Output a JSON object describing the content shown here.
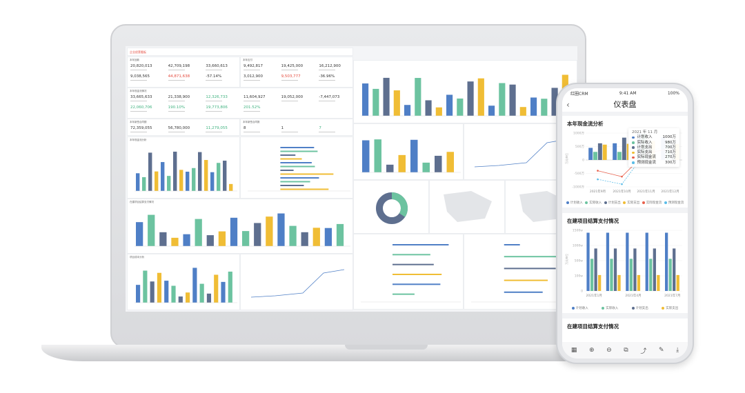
{
  "laptop": {
    "app_title": "企业经营看板",
    "sections": [
      {
        "title": "本年回款",
        "kpis": [
          {
            "v": "20,820,013"
          },
          {
            "v": "42,709,198"
          },
          {
            "v": "33,660,613"
          },
          {
            "v": "9,038,565"
          },
          {
            "v": "44,871,638",
            "c": "red"
          },
          {
            "v": "-57.14%"
          }
        ]
      },
      {
        "title": "本年应付",
        "kpis": [
          {
            "v": "9,492,817"
          },
          {
            "v": "19,425,000"
          },
          {
            "v": "16,212,900"
          },
          {
            "v": "3,012,900"
          },
          {
            "v": "9,503,777",
            "c": "red"
          },
          {
            "v": "-36.96%"
          }
        ]
      },
      {
        "title": "本年现金流情况",
        "kpis": [
          {
            "v": "33,665,633"
          },
          {
            "v": "21,338,900"
          },
          {
            "v": "12,326,733",
            "c": "green"
          },
          {
            "v": "11,604,927"
          },
          {
            "v": "19,052,000"
          },
          {
            "v": "-7,447,073"
          },
          {
            "v": "22,060,706",
            "c": "green"
          },
          {
            "v": "190.10%",
            "c": "green"
          },
          {
            "v": "19,773,806",
            "c": "green"
          },
          {
            "v": "201.52%",
            "c": "green"
          }
        ]
      },
      {
        "title": "本年新签合同额",
        "kpis": [
          {
            "v": "72,359,055"
          },
          {
            "v": "56,780,000"
          },
          {
            "v": "11,279,055",
            "c": "green"
          }
        ]
      },
      {
        "title": "本年新签合同数",
        "kpis": [
          {
            "v": "8"
          },
          {
            "v": "1"
          },
          {
            "v": "7",
            "c": "green"
          }
        ]
      }
    ]
  },
  "phone": {
    "status": {
      "carrier": "红圈CRM",
      "time": "9:41 AM",
      "battery": "100%"
    },
    "nav_title": "仪表盘",
    "back_icon": "chevron-left-icon",
    "toolbar_icons": [
      "grid-icon",
      "zoom-in-icon",
      "zoom-out-icon",
      "fit-icon",
      "rotate-icon",
      "pen-icon",
      "download-icon"
    ],
    "third_title": "在建项目结算支付情况"
  },
  "colors": {
    "plan_income": "#4f7fc6",
    "actual_income": "#6cc3a0",
    "plan_expense": "#5e6f8f",
    "actual_expense": "#f0bd35",
    "actual_cash": "#e8604c",
    "forecast_cash": "#5bbde8"
  },
  "chart_data": [
    {
      "type": "bar",
      "title": "本年现金流分析",
      "ylabel": "万元单位",
      "ylim": [
        -1000,
        1000
      ],
      "yticks": [
        "1000万",
        "500万",
        "0",
        "-500万",
        "-1000万"
      ],
      "categories": [
        "2021年9月",
        "2021年10月",
        "2021年11月",
        "2021年12月"
      ],
      "series": [
        {
          "name": "计划收入",
          "values": [
            450,
            620,
            1000,
            850
          ]
        },
        {
          "name": "实际收入",
          "values": [
            300,
            300,
            980,
            700
          ]
        },
        {
          "name": "计划支出",
          "values": [
            620,
            830,
            700,
            650
          ]
        },
        {
          "name": "实际支出",
          "values": [
            570,
            600,
            710,
            600
          ]
        },
        {
          "name": "实际现金流",
          "kind": "line",
          "values": [
            -400,
            -620,
            270,
            400
          ]
        },
        {
          "name": "预测现金流",
          "kind": "line",
          "values": [
            -720,
            -900,
            300,
            530
          ]
        }
      ],
      "tooltip": {
        "title": "2021 年 11 月",
        "rows": [
          {
            "name": "计划收入",
            "value": "1000万"
          },
          {
            "name": "实际收入",
            "value": "980万"
          },
          {
            "name": "计划支出",
            "value": "700万"
          },
          {
            "name": "实际支出",
            "value": "710万"
          },
          {
            "name": "实际现金流",
            "value": "270万"
          },
          {
            "name": "预测现金流",
            "value": "300万"
          }
        ]
      },
      "legend": "bottom"
    },
    {
      "type": "bar",
      "title": "在建项目结算支付情况",
      "ylabel": "万元单位",
      "yticks": [
        {
          "v": 0,
          "label": "0"
        },
        {
          "v": 100,
          "label": "100w"
        },
        {
          "v": 500,
          "label": "500w"
        },
        {
          "v": 1000,
          "label": "1000w"
        },
        {
          "v": 1500,
          "label": "1500w"
        }
      ],
      "categories": [
        "2021年1月",
        "",
        "2021年4月",
        "",
        "2021年7月"
      ],
      "series": [
        {
          "name": "计划收入",
          "values": [
            1420,
            1420,
            1420,
            1420,
            1420
          ]
        },
        {
          "name": "实际收入",
          "values": [
            560,
            560,
            560,
            560,
            560
          ]
        },
        {
          "name": "计划支出",
          "values": [
            900,
            900,
            900,
            900,
            900
          ]
        },
        {
          "name": "实际支出",
          "values": [
            120,
            120,
            120,
            120,
            120
          ]
        }
      ],
      "legend": "bottom"
    }
  ]
}
